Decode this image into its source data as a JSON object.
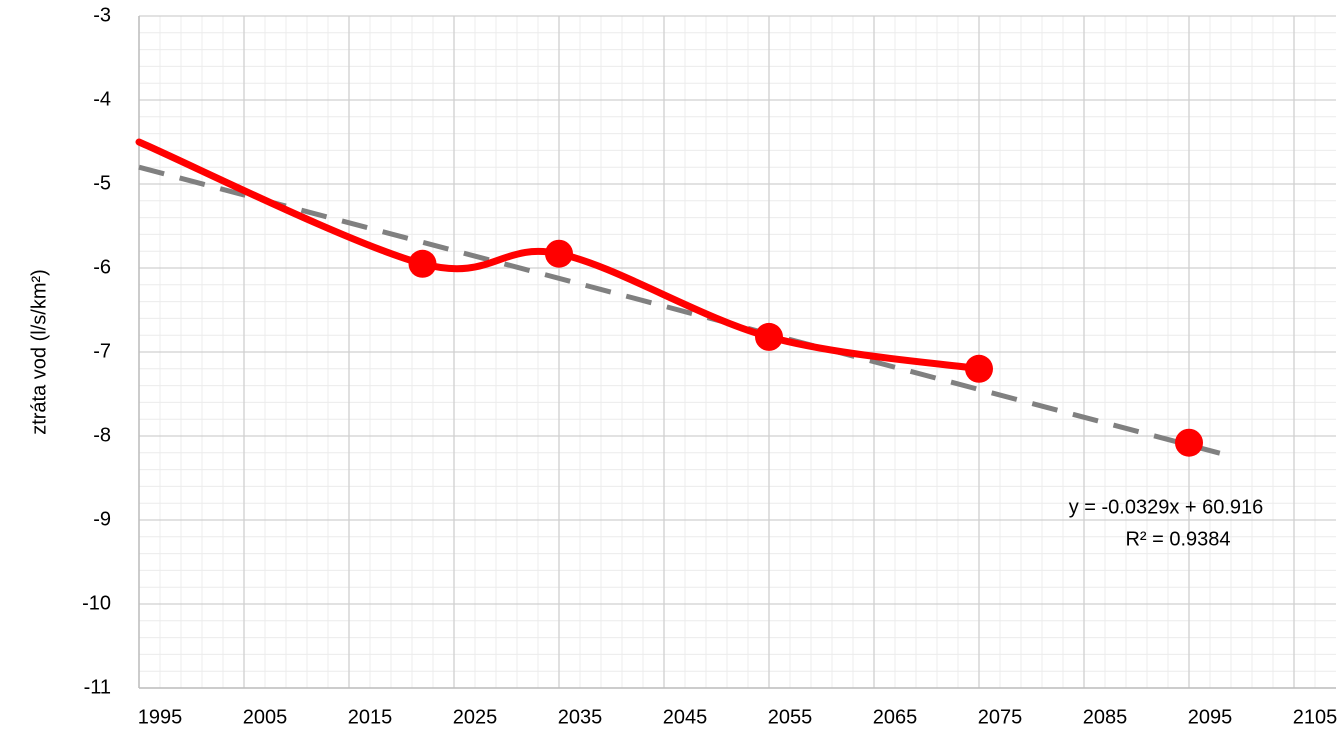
{
  "chart_data": {
    "type": "line",
    "y_label": "ztráta vod (l/s/km²)",
    "xlim": [
      1995,
      2109
    ],
    "xticks": [
      1995,
      2005,
      2015,
      2025,
      2035,
      2045,
      2055,
      2065,
      2075,
      2085,
      2095,
      2105
    ],
    "ylim": [
      -11,
      -3
    ],
    "yticks": [
      -11,
      -10,
      -9,
      -8,
      -7,
      -6,
      -5,
      -4,
      -3
    ],
    "grid": true,
    "minor_grid": true,
    "series": [
      {
        "color": "#ff0000",
        "style": "smooth",
        "x": [
          1995,
          2022,
          2035,
          2055,
          2075
        ],
        "values": [
          -4.5,
          -5.95,
          -5.83,
          -6.82,
          -7.2
        ]
      },
      {
        "color": "#ff0000",
        "style": "markers",
        "x": [
          2022,
          2035,
          2055,
          2075,
          2095
        ],
        "values": [
          -5.95,
          -5.83,
          -6.82,
          -7.2,
          -8.08
        ]
      },
      {
        "color": "#808080",
        "style": "dashed",
        "x": [
          1995,
          2099
        ],
        "values": [
          -4.8,
          -8.24
        ]
      }
    ],
    "annotations": [
      "y = -0.0329x + 60.916",
      "R² = 0.9384"
    ]
  }
}
